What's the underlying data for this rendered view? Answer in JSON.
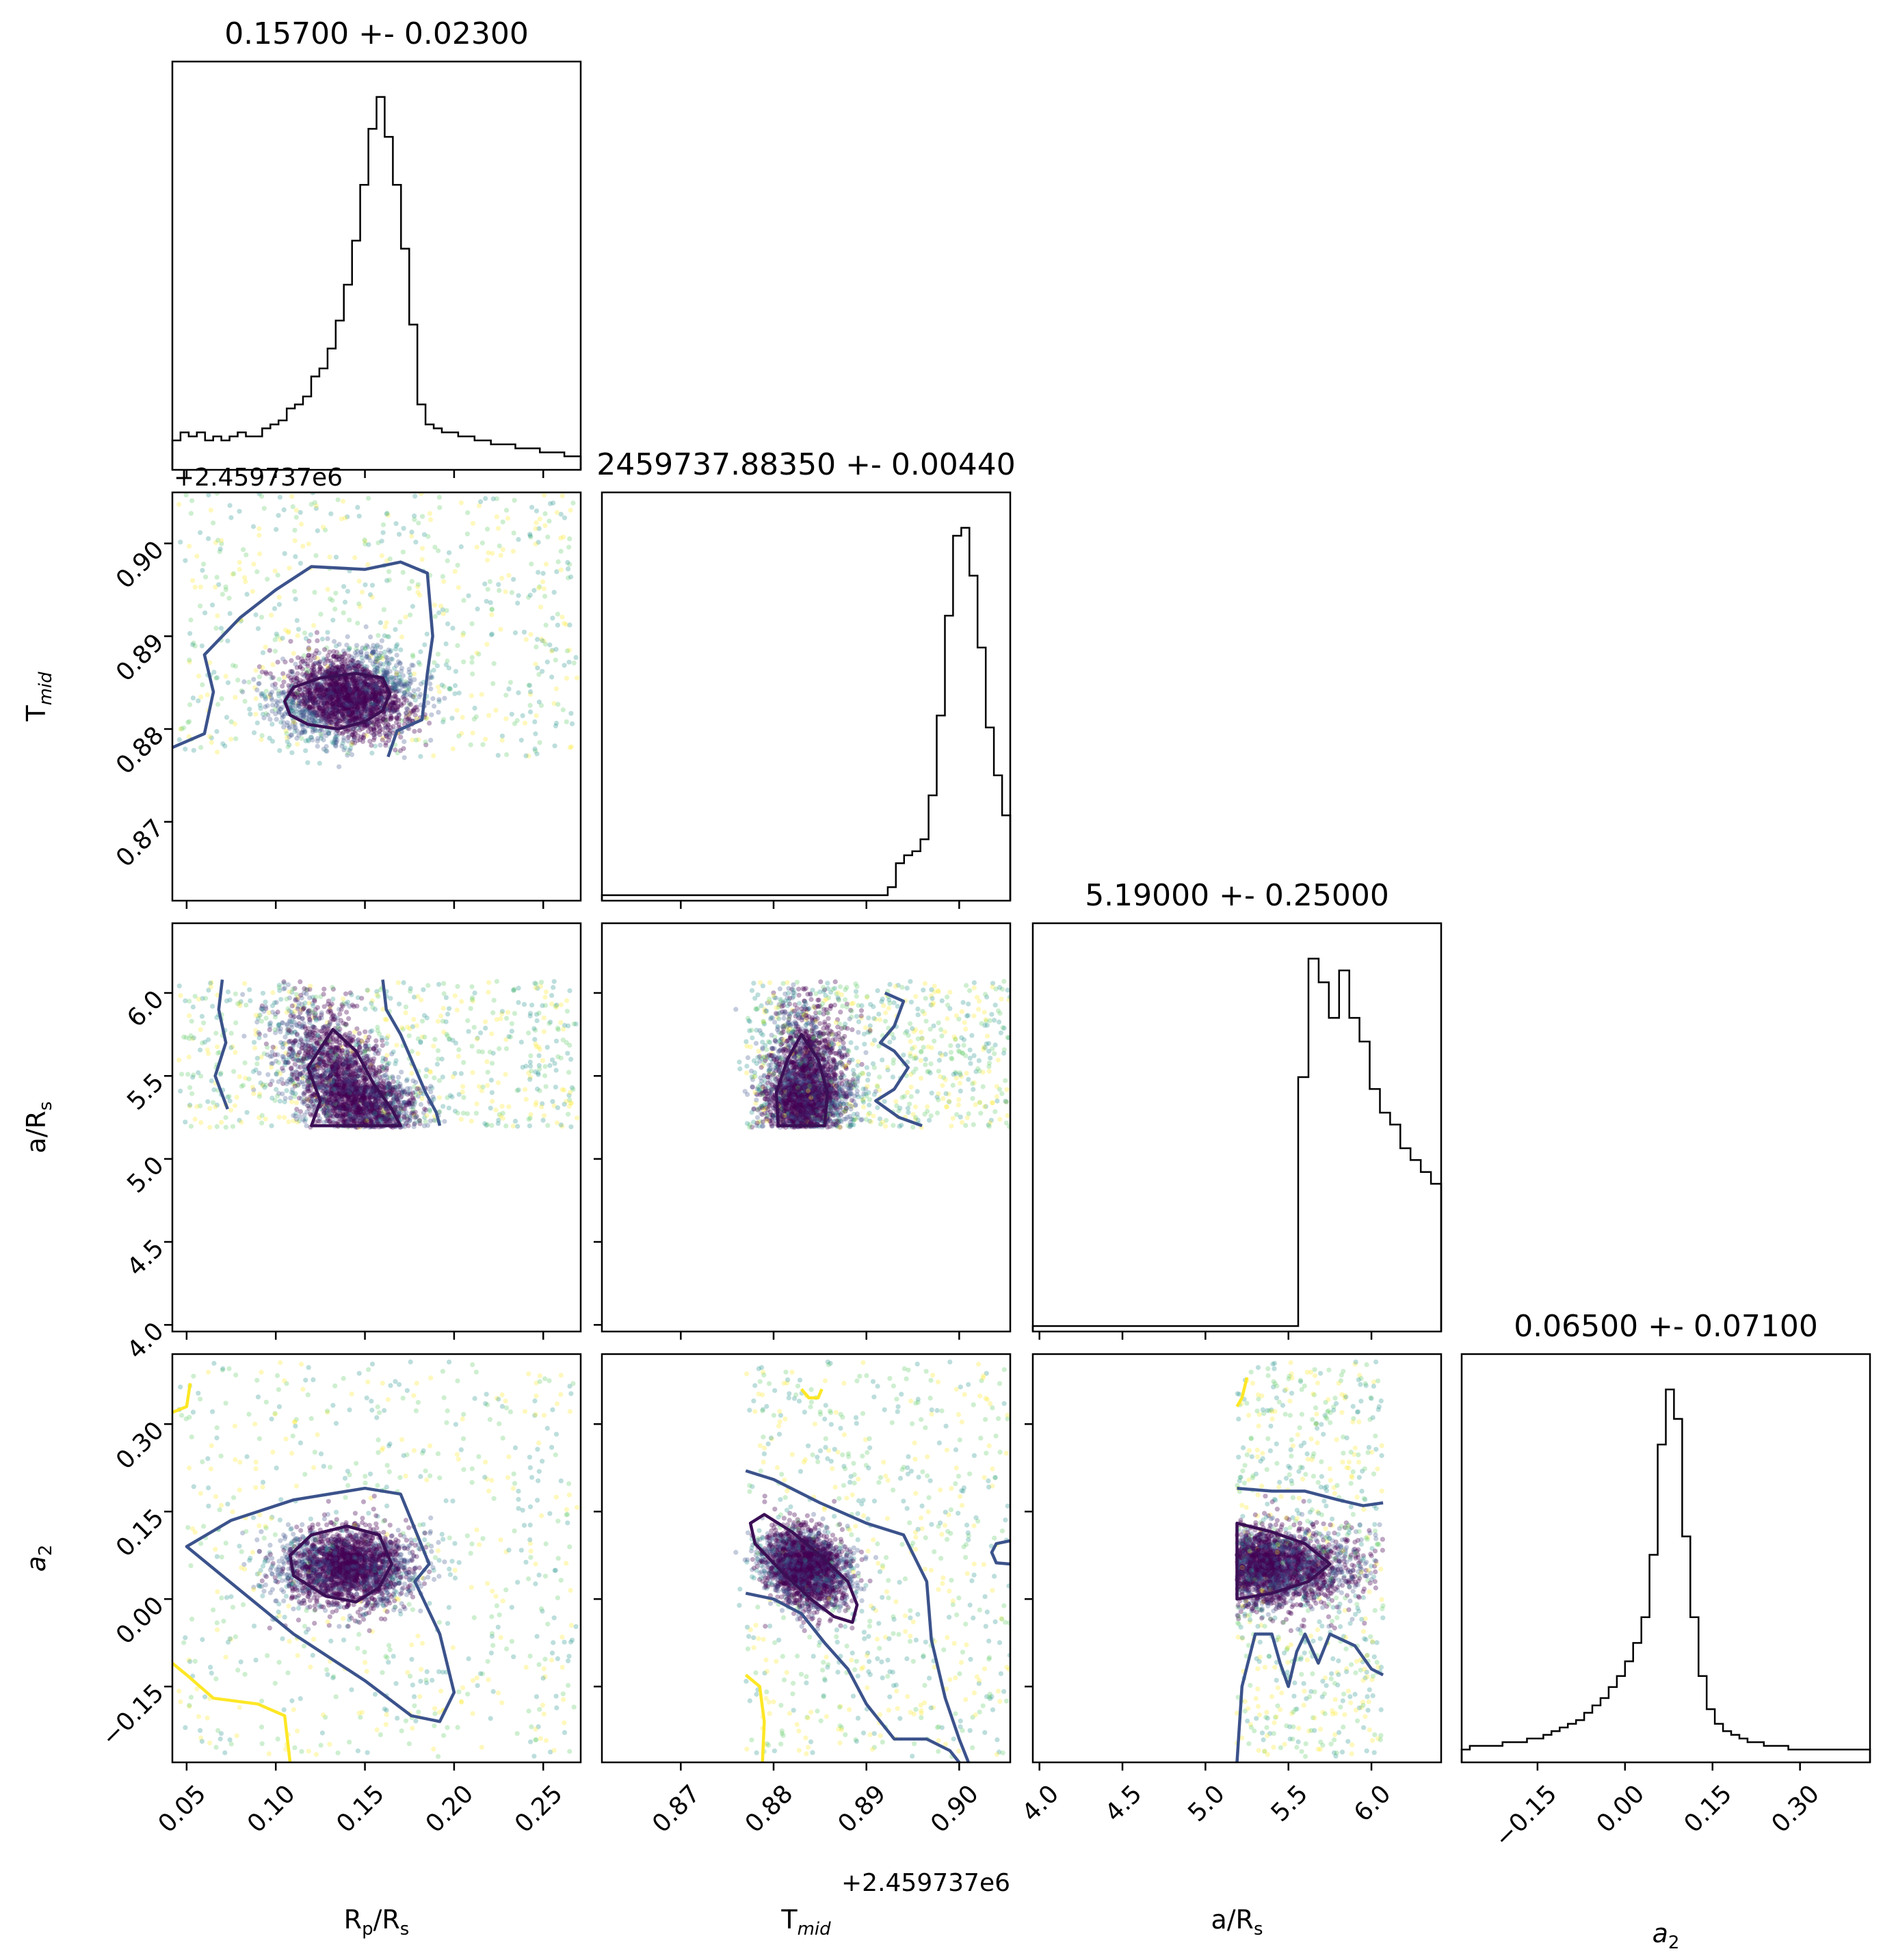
{
  "chart_data": {
    "type": "corner",
    "parameters": [
      {
        "key": "rp",
        "label": "R",
        "sub": "p",
        "label2": "/R",
        "sub2": "s",
        "range": [
          0.042,
          0.271
        ],
        "ticks": [
          0.05,
          0.1,
          0.15,
          0.2,
          0.25
        ],
        "tick_labels": [
          "0.05",
          "0.10",
          "0.15",
          "0.20",
          "0.25"
        ]
      },
      {
        "key": "tmid",
        "label": "T",
        "sub": "mid",
        "label2": "",
        "sub2": "",
        "range": [
          0.8615,
          0.9055
        ],
        "ticks": [
          0.87,
          0.88,
          0.89,
          0.9
        ],
        "tick_labels": [
          "0.87",
          "0.88",
          "0.89",
          "0.90"
        ],
        "offset_label": "+2.459737e6"
      },
      {
        "key": "ars",
        "label": "a/R",
        "sub": "s",
        "label2": "",
        "sub2": "",
        "range": [
          3.96,
          6.42
        ],
        "ticks": [
          4.0,
          4.5,
          5.0,
          5.5,
          6.0
        ],
        "tick_labels": [
          "4.0",
          "4.5",
          "5.0",
          "5.5",
          "6.0"
        ]
      },
      {
        "key": "a2",
        "label": "a",
        "sub": "2",
        "label2": "",
        "sub2": "",
        "italic": true,
        "range": [
          -0.28,
          0.42
        ],
        "ticks": [
          -0.15,
          0.0,
          0.15,
          0.3
        ],
        "tick_labels": [
          "−0.15",
          "0.00",
          "0.15",
          "0.30"
        ]
      }
    ],
    "titles": [
      "0.15700 +- 0.02300",
      "2459737.88350 +- 0.00440",
      "5.19000 +- 0.25000",
      "0.06500 +- 0.07100"
    ],
    "histograms": [
      {
        "bins": 50,
        "range": [
          0.042,
          0.271
        ],
        "values": [
          6,
          8,
          7,
          8,
          6,
          7,
          6,
          7,
          8,
          7,
          7,
          9,
          10,
          11,
          14,
          15,
          17,
          22,
          24,
          29,
          36,
          45,
          56,
          70,
          84,
          92,
          82,
          70,
          54,
          35,
          15,
          10,
          9,
          8,
          8,
          7,
          7,
          6,
          6,
          5,
          5,
          5,
          4,
          4,
          4,
          3,
          3,
          3,
          2,
          2
        ]
      },
      {
        "bins": 50,
        "range": [
          0.8615,
          0.9055
        ],
        "values": [
          0,
          0,
          0,
          0,
          0,
          0,
          0,
          0,
          0,
          0,
          0,
          0,
          0,
          0,
          0,
          0,
          0,
          0,
          0,
          0,
          0,
          0,
          0,
          0,
          0,
          0,
          0,
          0,
          0,
          0,
          0,
          0,
          0,
          0,
          0,
          2,
          8,
          10,
          11,
          14,
          25,
          45,
          70,
          90,
          92,
          80,
          62,
          42,
          30,
          20
        ]
      },
      {
        "bins": 40,
        "range": [
          3.96,
          6.42
        ],
        "values": [
          0,
          0,
          0,
          0,
          0,
          0,
          0,
          0,
          0,
          0,
          0,
          0,
          0,
          0,
          0,
          0,
          0,
          0,
          0,
          0,
          0,
          0,
          0,
          0,
          0,
          0,
          42,
          62,
          58,
          52,
          60,
          52,
          48,
          40,
          36,
          34,
          30,
          28,
          26,
          24
        ]
      },
      {
        "bins": 50,
        "range": [
          -0.28,
          0.42
        ],
        "values": [
          2,
          3,
          3,
          3,
          3,
          4,
          4,
          4,
          5,
          5,
          6,
          7,
          8,
          9,
          10,
          12,
          14,
          16,
          19,
          22,
          26,
          31,
          38,
          55,
          85,
          100,
          92,
          60,
          38,
          22,
          13,
          9,
          7,
          6,
          5,
          4,
          4,
          3,
          3,
          3,
          2,
          2,
          2,
          2,
          2,
          2,
          2,
          2,
          2,
          2
        ]
      }
    ],
    "contour_colors": {
      "inner": "#3b0f55",
      "outer": "#3b528b",
      "outlier": "#fde725"
    },
    "scatter_colors": [
      "#440154",
      "#3b528b",
      "#21918c",
      "#5ec962",
      "#fde725"
    ]
  }
}
